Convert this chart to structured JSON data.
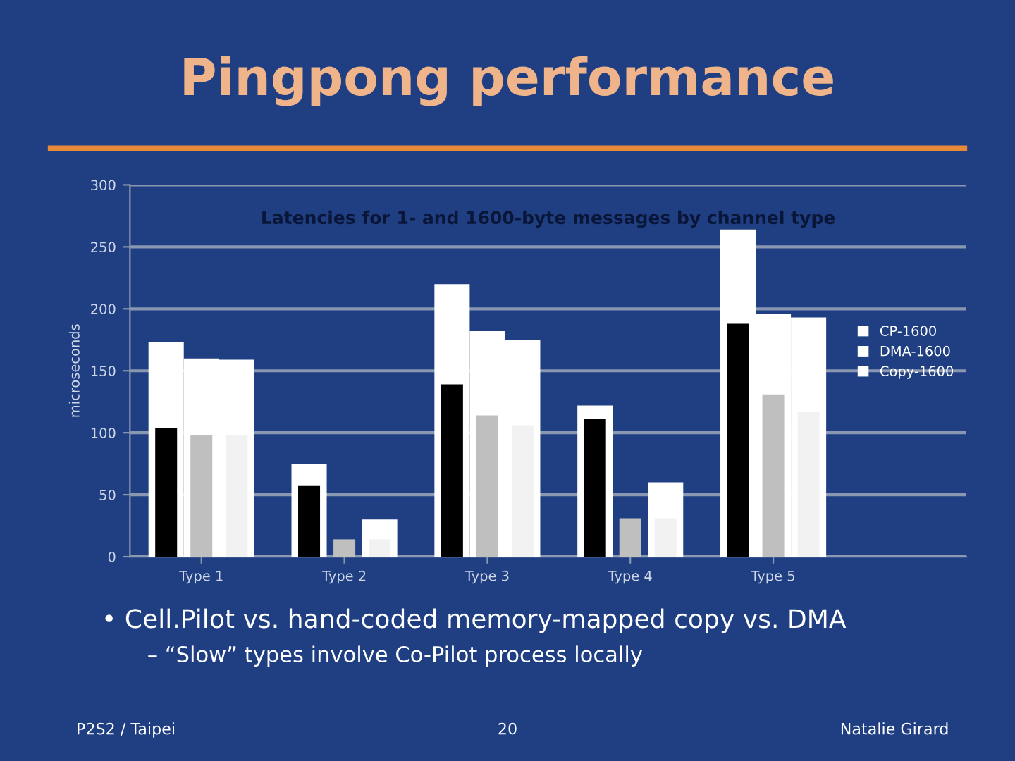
{
  "chart_data": {
    "type": "bar",
    "title": "Pingpong performance",
    "subtitle": "Latencies for 1- and 1600-byte messages by channel type",
    "ylabel": "microseconds",
    "categories": [
      "Type 1",
      "Type 2",
      "Type 3",
      "Type 4",
      "Type 5"
    ],
    "series": [
      {
        "name": "CP-1600",
        "color": "#ffffff",
        "values": [
          173,
          75,
          220,
          122,
          264
        ]
      },
      {
        "color": "#000000",
        "values": [
          104,
          57,
          139,
          111,
          188
        ]
      },
      {
        "name": "DMA-1600",
        "color": "#ffffff",
        "values": [
          160,
          null,
          182,
          null,
          196
        ]
      },
      {
        "color": "#bfbfbf",
        "values": [
          98,
          14,
          114,
          31,
          131
        ]
      },
      {
        "name": "Copy-1600",
        "color": "#ffffff",
        "values": [
          159,
          30,
          175,
          60,
          193
        ]
      },
      {
        "color": "#f2f2f2",
        "values": [
          98,
          14,
          106,
          31,
          117
        ]
      }
    ],
    "ylim": [
      0,
      300
    ],
    "yticks": [
      0,
      50,
      100,
      150,
      200,
      250,
      300
    ],
    "grid": "y",
    "legend": "right",
    "annotations": [
      "• Cell.Pilot vs. hand-coded memory-mapped copy vs. DMA",
      "– “Slow” types involve Co-Pilot process locally",
      "P2S2 / Taipei",
      "20",
      "Natalie Girard"
    ]
  }
}
